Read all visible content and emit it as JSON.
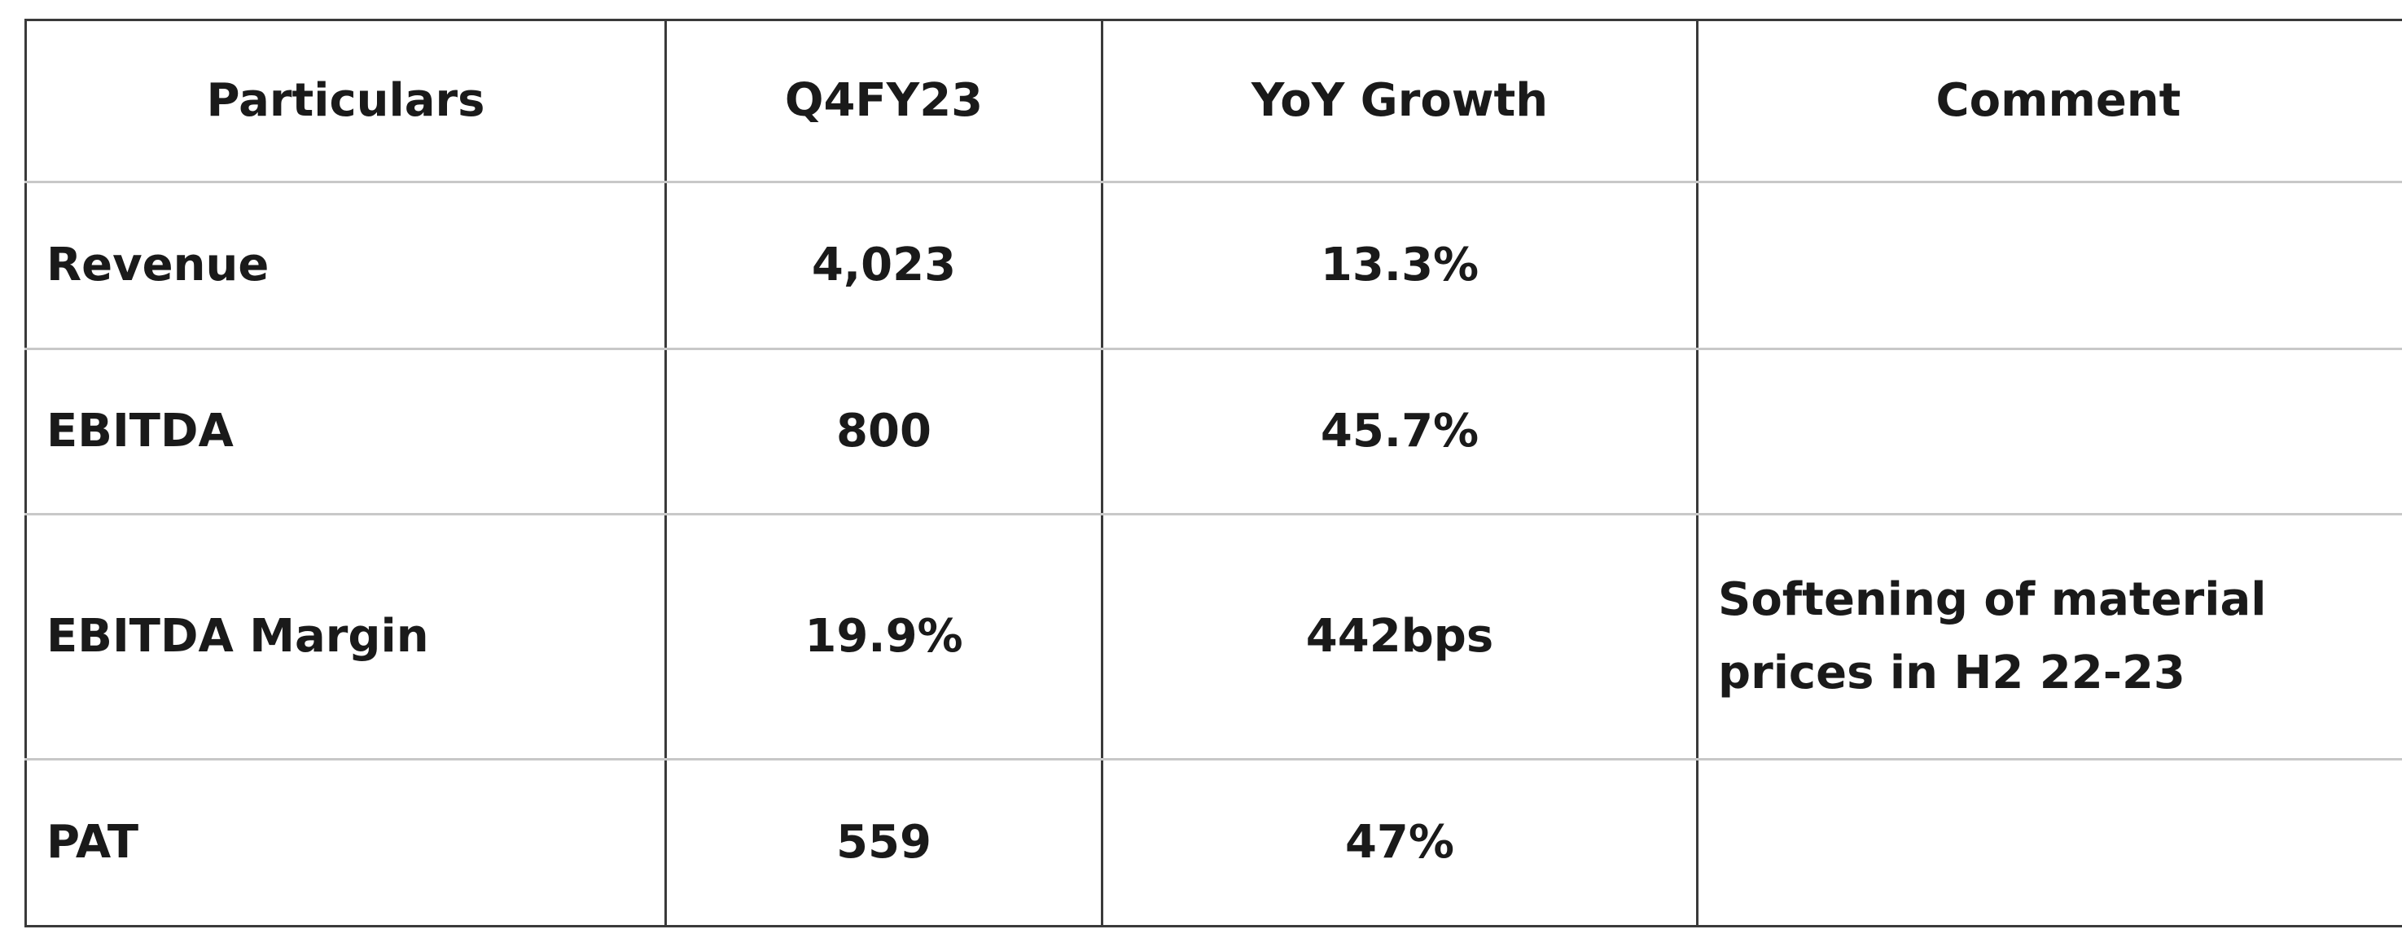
{
  "table": {
    "headers": [
      "Particulars",
      "Q4FY23",
      "YoY Growth",
      "Comment"
    ],
    "rows": [
      [
        "Revenue",
        "4,023",
        "13.3%"
      ],
      [
        "EBITDA",
        "800",
        "45.7%"
      ],
      [
        "EBITDA Margin",
        "19.9%",
        "442bps",
        [
          "Softening of material",
          "prices in H2 22-23"
        ]
      ],
      [
        "PAT",
        "559",
        "47%"
      ]
    ]
  }
}
